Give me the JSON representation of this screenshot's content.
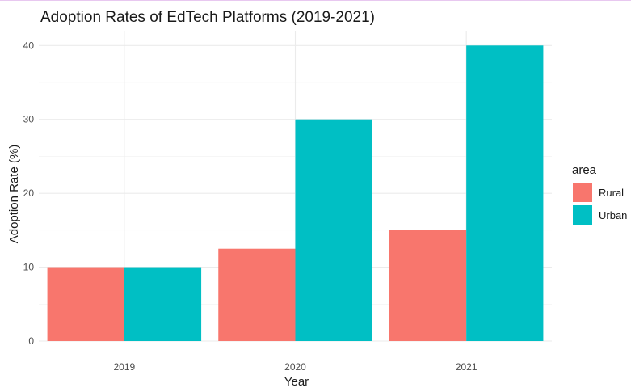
{
  "chart_data": {
    "type": "bar",
    "title": "Adoption Rates of EdTech Platforms (2019-2021)",
    "xlabel": "Year",
    "ylabel": "Adoption Rate (%)",
    "categories": [
      "2019",
      "2020",
      "2021"
    ],
    "series": [
      {
        "name": "Rural",
        "color": "#F8766D",
        "values": [
          10,
          12.5,
          15
        ]
      },
      {
        "name": "Urban",
        "color": "#00BFC4",
        "values": [
          10,
          30,
          40
        ]
      }
    ],
    "ylim": [
      0,
      42
    ],
    "yticks": [
      0,
      10,
      20,
      30,
      40
    ],
    "grid": true,
    "legend": {
      "title": "area",
      "position": "right"
    }
  }
}
